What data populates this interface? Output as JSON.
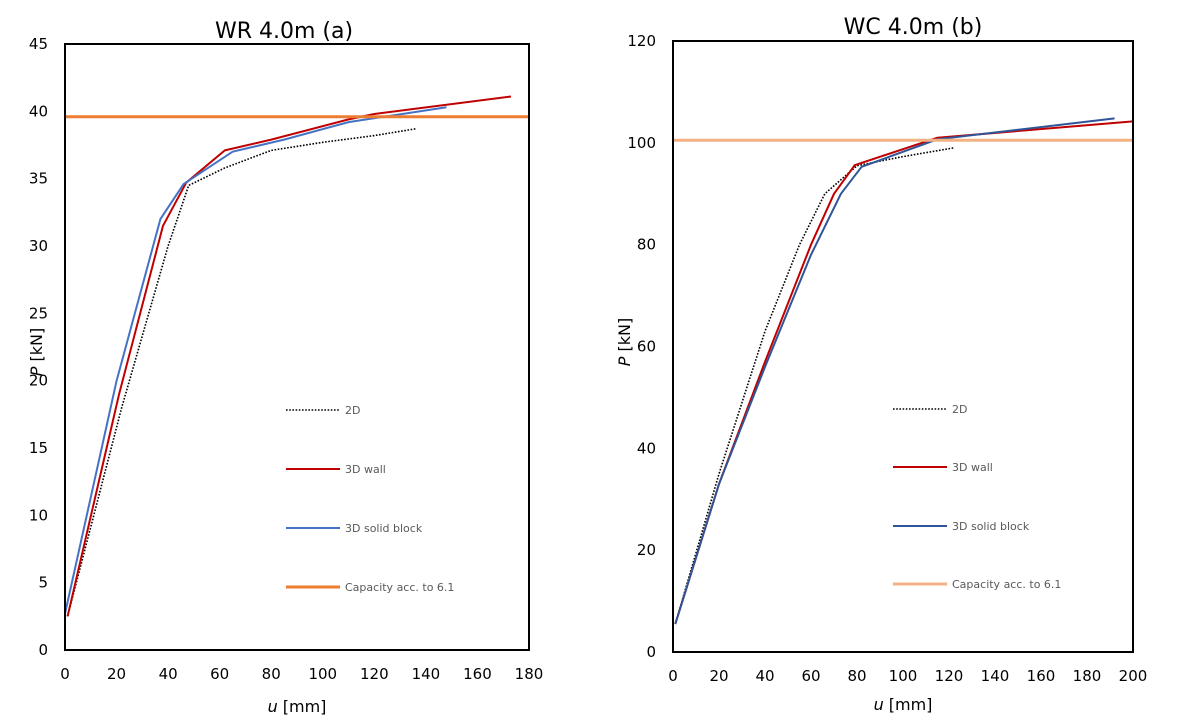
{
  "chart_data": [
    {
      "type": "line",
      "title": "WR 4.0m (a)",
      "xlabel_italic": "u",
      "xlabel_unit": "[mm]",
      "ylabel_italic": "P",
      "ylabel_unit": "[kN]",
      "xlim": [
        0,
        180
      ],
      "ylim": [
        0,
        45
      ],
      "xticks": [
        0,
        20,
        40,
        60,
        80,
        100,
        120,
        140,
        160,
        180
      ],
      "yticks": [
        0,
        5,
        10,
        15,
        20,
        25,
        30,
        35,
        40,
        45
      ],
      "grid": false,
      "legend_position": "center-right",
      "series": [
        {
          "name": "2D",
          "color": "#000000",
          "style": "dotted",
          "x": [
            1,
            22,
            40,
            48,
            62,
            80,
            100,
            120,
            136
          ],
          "y": [
            2.5,
            18,
            30,
            34.5,
            35.8,
            37.1,
            37.7,
            38.2,
            38.7
          ]
        },
        {
          "name": "3D wall",
          "color": "#C00000",
          "style": "solid",
          "x": [
            1,
            21,
            38,
            47,
            62,
            80,
            110,
            120,
            173
          ],
          "y": [
            2.5,
            19,
            31.5,
            34.7,
            37.1,
            37.9,
            39.4,
            39.8,
            41.1
          ]
        },
        {
          "name": "3D solid block",
          "color": "#4472C4",
          "style": "solid",
          "x": [
            0,
            20,
            37,
            46,
            65,
            85,
            110,
            148
          ],
          "y": [
            2.7,
            20,
            32,
            34.6,
            37.0,
            37.9,
            39.2,
            40.3
          ]
        },
        {
          "name": "Capacity acc. to 6.1",
          "color": "#ED7D31",
          "style": "hline",
          "value": 39.6
        }
      ]
    },
    {
      "type": "line",
      "title": "WC 4.0m (b)",
      "xlabel_italic": "u",
      "xlabel_unit": "[mm]",
      "ylabel_italic": "P",
      "ylabel_unit": "[kN]",
      "xlim": [
        0,
        200
      ],
      "ylim": [
        0,
        120
      ],
      "xticks": [
        0,
        20,
        40,
        60,
        80,
        100,
        120,
        140,
        160,
        180,
        200
      ],
      "yticks": [
        0,
        20,
        40,
        60,
        80,
        100,
        120
      ],
      "grid": false,
      "legend_position": "center-right",
      "series": [
        {
          "name": "2D",
          "color": "#000000",
          "style": "dotted",
          "x": [
            1,
            20,
            40,
            55,
            66,
            80,
            100,
            122
          ],
          "y": [
            5.5,
            35,
            63,
            80,
            90,
            95.5,
            97.3,
            99
          ]
        },
        {
          "name": "3D wall",
          "color": "#C00000",
          "style": "solid",
          "x": [
            1,
            20,
            40,
            60,
            70,
            79,
            115,
            200
          ],
          "y": [
            5.5,
            33,
            57,
            80,
            90,
            95.6,
            101,
            104.2
          ]
        },
        {
          "name": "3D solid block",
          "color": "#2F5597",
          "style": "solid",
          "x": [
            1,
            20,
            40,
            60,
            73,
            82,
            115,
            192
          ],
          "y": [
            5.5,
            33,
            56,
            78,
            90,
            95.3,
            100.7,
            104.8
          ]
        },
        {
          "name": "Capacity acc. to 6.1",
          "color": "#F4B183",
          "style": "hline",
          "value": 100.5
        }
      ]
    }
  ]
}
